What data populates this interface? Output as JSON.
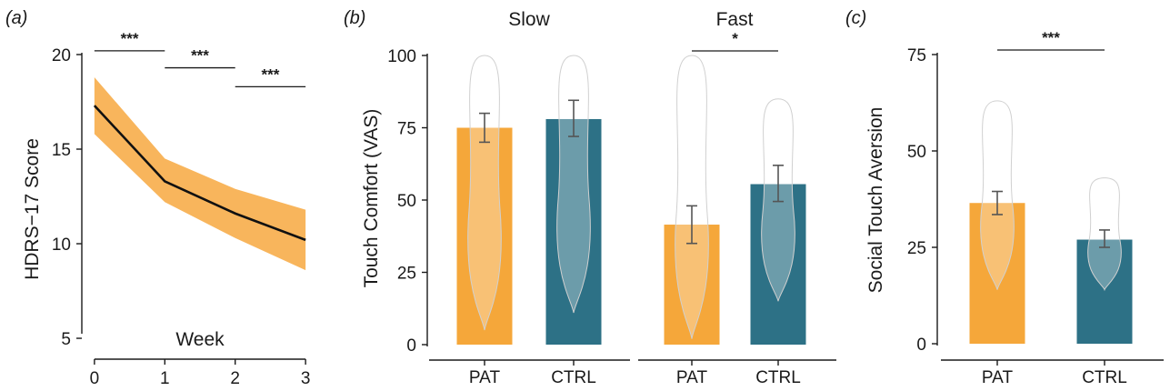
{
  "colors": {
    "pat": "#F5A73A",
    "ctrl": "#2D7186",
    "band": "#F8B55C",
    "line": "#111111",
    "violin_fill": "#FFFFFF",
    "violin_opacity": 0.3
  },
  "chart_data": [
    {
      "panel": "(a)",
      "type": "line",
      "xlabel": "Week",
      "ylabel": "HDRS−17 Score",
      "x": [
        0,
        1,
        2,
        3
      ],
      "xticks": [
        "0",
        "1",
        "2",
        "3"
      ],
      "yticks": [
        "5",
        "10",
        "15",
        "20"
      ],
      "xlim": [
        -0.05,
        3.05
      ],
      "ylim": [
        3.8,
        20
      ],
      "series": [
        {
          "values": [
            17.3,
            13.3,
            11.6,
            10.2
          ],
          "lower": [
            15.8,
            12.2,
            10.3,
            8.6
          ],
          "upper": [
            18.8,
            14.5,
            12.9,
            11.8
          ]
        }
      ],
      "significance": [
        {
          "from": 0,
          "to": 1,
          "y": 20.2,
          "label": "***"
        },
        {
          "from": 1,
          "to": 2,
          "y": 19.3,
          "label": "***"
        },
        {
          "from": 2,
          "to": 3,
          "y": 18.3,
          "label": "***"
        }
      ]
    },
    {
      "panel": "(b)",
      "type": "bar",
      "ylabel": "Touch Comfort (VAS)",
      "yticks": [
        "0",
        "25",
        "50",
        "75",
        "100"
      ],
      "ylim": [
        0,
        100
      ],
      "facets": [
        {
          "title": "Slow",
          "categories": [
            "PAT",
            "CTRL"
          ],
          "values": [
            75,
            78
          ],
          "err_low": [
            70,
            72
          ],
          "err_high": [
            80,
            84.5
          ],
          "violin_range": [
            [
              5,
              100
            ],
            [
              11,
              100
            ]
          ],
          "significance": null
        },
        {
          "title": "Fast",
          "categories": [
            "PAT",
            "CTRL"
          ],
          "values": [
            41.5,
            55.5
          ],
          "err_low": [
            35,
            49.5
          ],
          "err_high": [
            48,
            62
          ],
          "violin_range": [
            [
              2,
              100
            ],
            [
              15,
              85
            ]
          ],
          "significance": {
            "label": "*"
          }
        }
      ]
    },
    {
      "panel": "(c)",
      "type": "bar",
      "ylabel": "Social Touch Aversion",
      "yticks": [
        "0",
        "25",
        "50",
        "75"
      ],
      "ylim": [
        0,
        75
      ],
      "categories": [
        "PAT",
        "CTRL"
      ],
      "values": [
        36.5,
        27
      ],
      "err_low": [
        33.5,
        25
      ],
      "err_high": [
        39.5,
        29.5
      ],
      "violin_range": [
        [
          14,
          63
        ],
        [
          14,
          43
        ]
      ],
      "significance": {
        "label": "***"
      }
    }
  ]
}
